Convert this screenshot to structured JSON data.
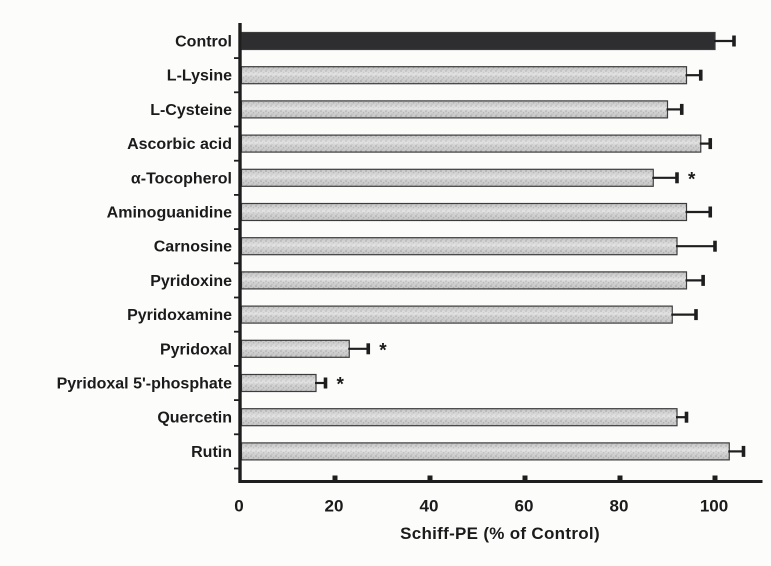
{
  "figure": {
    "background": "#fcfcfb"
  },
  "chart_data": {
    "type": "bar",
    "orientation": "horizontal",
    "title": "",
    "xlabel": "Schiff-PE (% of Control)",
    "ylabel": "",
    "xlim": [
      0,
      110
    ],
    "xticks": [
      0,
      20,
      40,
      60,
      80,
      100
    ],
    "grid": false,
    "legend": null,
    "significance_marker": "*",
    "colors": {
      "control_bar_fill": "#2e2e31",
      "bar_fill": "#c8c8c8",
      "bar_stipple": "#999999",
      "bar_border": "#3c3c3c",
      "axis_color": "#1e1e1e",
      "error_color": "#1e1e1e",
      "text_color": "#1b1b1b"
    },
    "categories": [
      "Control",
      "L-Lysine",
      "L-Cysteine",
      "Ascorbic acid",
      "α-Tocopherol",
      "Aminoguanidine",
      "Carnosine",
      "Pyridoxine",
      "Pyridoxamine",
      "Pyridoxal",
      "Pyridoxal 5'-phosphate",
      "Quercetin",
      "Rutin"
    ],
    "series": [
      {
        "name": "Schiff-PE (% of Control)",
        "values": [
          100,
          94,
          90,
          97,
          87,
          94,
          92,
          94,
          91,
          23,
          16,
          92,
          103
        ],
        "errors": [
          4,
          3,
          3,
          2,
          5,
          5,
          8,
          3.5,
          5,
          4,
          2,
          2,
          3
        ],
        "significant": [
          false,
          false,
          false,
          false,
          true,
          false,
          false,
          false,
          false,
          true,
          true,
          false,
          false
        ],
        "is_control": [
          true,
          false,
          false,
          false,
          false,
          false,
          false,
          false,
          false,
          false,
          false,
          false,
          false
        ]
      }
    ]
  }
}
